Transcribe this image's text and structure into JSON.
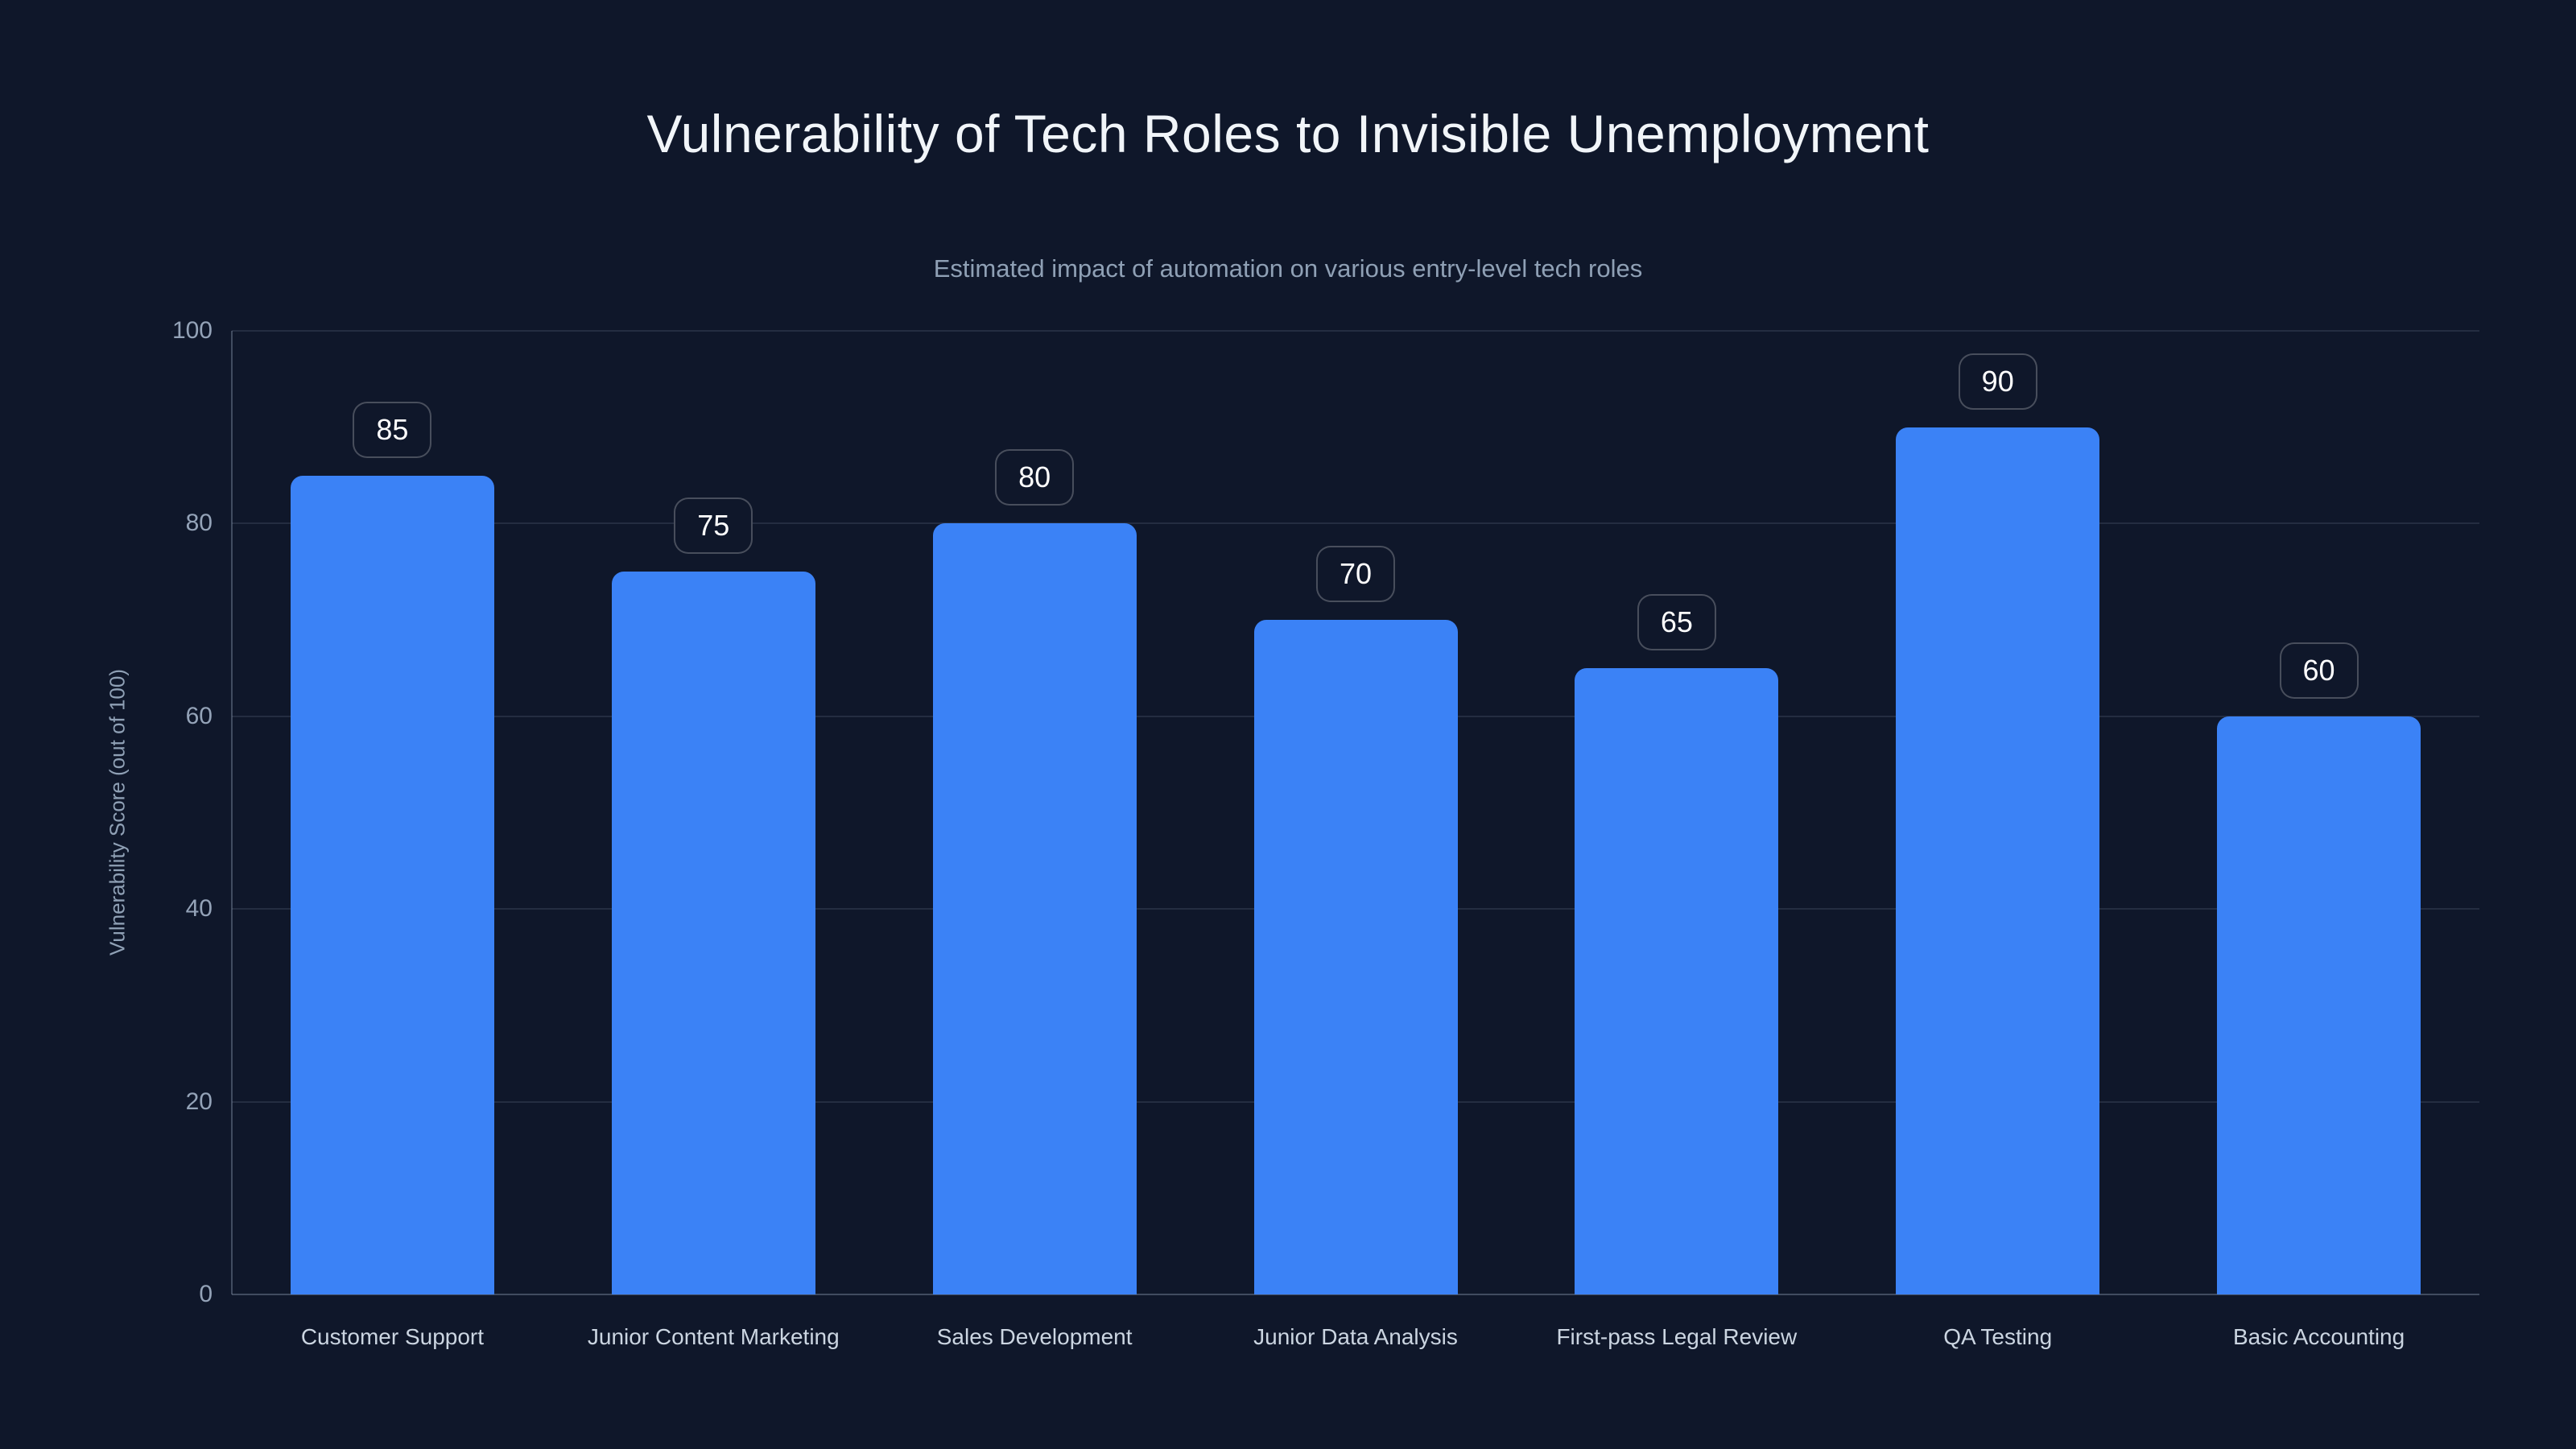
{
  "page": {
    "background_color": "#0f172a"
  },
  "chart_data": {
    "type": "bar",
    "title": "Vulnerability of Tech Roles to Invisible Unemployment",
    "subtitle": "Estimated impact of automation on various entry-level tech roles",
    "categories": [
      "Customer Support",
      "Junior Content Marketing",
      "Sales Development",
      "Junior Data Analysis",
      "First-pass Legal Review",
      "QA Testing",
      "Basic Accounting"
    ],
    "values": [
      85,
      75,
      80,
      70,
      65,
      90,
      60
    ],
    "value_labels": [
      "85",
      "75",
      "80",
      "70",
      "65",
      "90",
      "60"
    ],
    "xlabel": "",
    "ylabel": "Vulnerability Score (out of 100)",
    "ylim": [
      0,
      100
    ],
    "yticks": [
      0,
      20,
      40,
      60,
      80,
      100
    ],
    "grid": "horizontal",
    "legend": "none",
    "colors": {
      "bar": "#3b82f6",
      "background": "#0f172a",
      "title_text": "#f1f5f9",
      "subtitle_text": "#8fa0b5",
      "tick_label_text": "#94a3b8",
      "category_label_text": "#cbd5e1",
      "gridline": "rgba(148,163,184,0.16)",
      "axis_line": "rgba(148,163,184,0.38)",
      "badge_border": "rgba(255,255,255,0.24)",
      "badge_text": "#ffffff"
    }
  }
}
